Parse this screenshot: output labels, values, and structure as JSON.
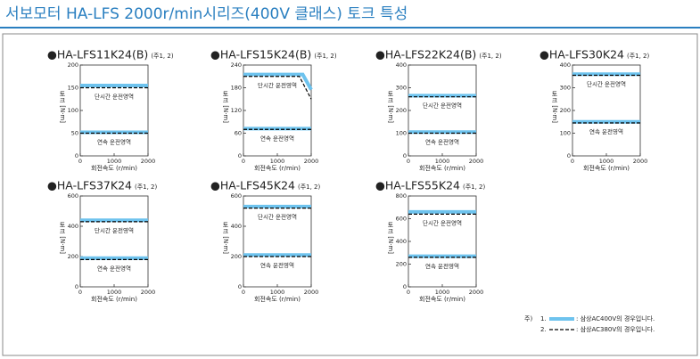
{
  "header": {
    "title": "서보모터 HA-LFS 2000r/min시리즈(400V 클래스) 토크 특성"
  },
  "chart_data": [
    {
      "type": "line",
      "title": "●HA-LFS11K24(B)",
      "note": "(주1, 2)",
      "ylabel": "토크 [N·m]",
      "xlabel": "회전속도 (r/min)",
      "xlim": [
        0,
        2000
      ],
      "xticks": [
        0,
        1000,
        2000
      ],
      "ylim": [
        0,
        200
      ],
      "yticks": [
        0,
        50,
        100,
        150,
        200
      ],
      "annotations": [
        "단시간 운전영역",
        "연속 운전영역"
      ],
      "series": [
        {
          "style": "band",
          "color": "#6ec3ee",
          "x": [
            0,
            2000
          ],
          "values": [
            155,
            155
          ]
        },
        {
          "style": "dashed",
          "color": "#000000",
          "x": [
            0,
            2000
          ],
          "values": [
            150,
            150
          ]
        },
        {
          "style": "band",
          "color": "#6ec3ee",
          "x": [
            0,
            2000
          ],
          "values": [
            52,
            52
          ]
        },
        {
          "style": "dashed",
          "color": "#000000",
          "x": [
            0,
            2000
          ],
          "values": [
            50,
            50
          ]
        }
      ]
    },
    {
      "type": "line",
      "title": "●HA-LFS15K24(B)",
      "note": "(주1, 2)",
      "ylabel": "토크 [N·m]",
      "xlabel": "회전속도 (r/min)",
      "xlim": [
        0,
        2000
      ],
      "xticks": [
        0,
        1000,
        2000
      ],
      "ylim": [
        0,
        240
      ],
      "yticks": [
        0,
        60,
        120,
        180,
        240
      ],
      "annotations": [
        "단시간 운전영역",
        "연속 운전영역"
      ],
      "series": [
        {
          "style": "band",
          "color": "#6ec3ee",
          "x": [
            0,
            1750,
            2000
          ],
          "values": [
            215,
            215,
            175
          ]
        },
        {
          "style": "dashed",
          "color": "#000000",
          "x": [
            0,
            1650,
            2000
          ],
          "values": [
            210,
            210,
            150
          ]
        },
        {
          "style": "band",
          "color": "#6ec3ee",
          "x": [
            0,
            2000
          ],
          "values": [
            72,
            72
          ]
        },
        {
          "style": "dashed",
          "color": "#000000",
          "x": [
            0,
            2000
          ],
          "values": [
            70,
            70
          ]
        }
      ]
    },
    {
      "type": "line",
      "title": "●HA-LFS22K24(B)",
      "note": "(주1, 2)",
      "ylabel": "토크 [N·m]",
      "xlabel": "회전속도 (r/min)",
      "xlim": [
        0,
        2000
      ],
      "xticks": [
        0,
        1000,
        2000
      ],
      "ylim": [
        0,
        400
      ],
      "yticks": [
        0,
        100,
        200,
        300,
        400
      ],
      "annotations": [
        "단시간 운전영역",
        "연속 운전영역"
      ],
      "series": [
        {
          "style": "band",
          "color": "#6ec3ee",
          "x": [
            0,
            2000
          ],
          "values": [
            265,
            265
          ]
        },
        {
          "style": "dashed",
          "color": "#000000",
          "x": [
            0,
            2000
          ],
          "values": [
            260,
            260
          ]
        },
        {
          "style": "band",
          "color": "#6ec3ee",
          "x": [
            0,
            2000
          ],
          "values": [
            105,
            105
          ]
        },
        {
          "style": "dashed",
          "color": "#000000",
          "x": [
            0,
            2000
          ],
          "values": [
            100,
            100
          ]
        }
      ]
    },
    {
      "type": "line",
      "title": "●HA-LFS30K24",
      "note": "(주1, 2)",
      "ylabel": "토크 [N·m]",
      "xlabel": "회전속도 (r/min)",
      "xlim": [
        0,
        2000
      ],
      "xticks": [
        0,
        1000,
        2000
      ],
      "ylim": [
        0,
        400
      ],
      "yticks": [
        0,
        100,
        200,
        300,
        400
      ],
      "annotations": [
        "단시간 운전영역",
        "연속 운전영역"
      ],
      "series": [
        {
          "style": "band",
          "color": "#6ec3ee",
          "x": [
            0,
            2000
          ],
          "values": [
            360,
            360
          ]
        },
        {
          "style": "dashed",
          "color": "#000000",
          "x": [
            0,
            2000
          ],
          "values": [
            355,
            355
          ]
        },
        {
          "style": "band",
          "color": "#6ec3ee",
          "x": [
            0,
            2000
          ],
          "values": [
            150,
            150
          ]
        },
        {
          "style": "dashed",
          "color": "#000000",
          "x": [
            0,
            2000
          ],
          "values": [
            145,
            145
          ]
        }
      ]
    },
    {
      "type": "line",
      "title": "●HA-LFS37K24",
      "note": "(주1, 2)",
      "ylabel": "토크 [N·m]",
      "xlabel": "회전속도 (r/min)",
      "xlim": [
        0,
        2000
      ],
      "xticks": [
        0,
        1000,
        2000
      ],
      "ylim": [
        0,
        600
      ],
      "yticks": [
        0,
        200,
        400,
        600
      ],
      "annotations": [
        "단시간 운전영역",
        "연속 운전영역"
      ],
      "series": [
        {
          "style": "band",
          "color": "#6ec3ee",
          "x": [
            0,
            2000
          ],
          "values": [
            440,
            440
          ]
        },
        {
          "style": "dashed",
          "color": "#000000",
          "x": [
            0,
            2000
          ],
          "values": [
            430,
            430
          ]
        },
        {
          "style": "band",
          "color": "#6ec3ee",
          "x": [
            0,
            2000
          ],
          "values": [
            190,
            190
          ]
        },
        {
          "style": "dashed",
          "color": "#000000",
          "x": [
            0,
            2000
          ],
          "values": [
            180,
            180
          ]
        }
      ]
    },
    {
      "type": "line",
      "title": "●HA-LFS45K24",
      "note": "(주1, 2)",
      "ylabel": "토크 [N·m]",
      "xlabel": "회전속도 (r/min)",
      "xlim": [
        0,
        2000
      ],
      "xticks": [
        0,
        1000,
        2000
      ],
      "ylim": [
        0,
        600
      ],
      "yticks": [
        0,
        200,
        400,
        600
      ],
      "annotations": [
        "단시간 운전영역",
        "연속 운전영역"
      ],
      "series": [
        {
          "style": "band",
          "color": "#6ec3ee",
          "x": [
            0,
            2000
          ],
          "values": [
            530,
            530
          ]
        },
        {
          "style": "dashed",
          "color": "#000000",
          "x": [
            0,
            2000
          ],
          "values": [
            520,
            520
          ]
        },
        {
          "style": "band",
          "color": "#6ec3ee",
          "x": [
            0,
            2000
          ],
          "values": [
            210,
            210
          ]
        },
        {
          "style": "dashed",
          "color": "#000000",
          "x": [
            0,
            2000
          ],
          "values": [
            200,
            200
          ]
        }
      ]
    },
    {
      "type": "line",
      "title": "●HA-LFS55K24",
      "note": "(주1, 2)",
      "ylabel": "토크 [N·m]",
      "xlabel": "회전속도 (r/min)",
      "xlim": [
        0,
        2000
      ],
      "xticks": [
        0,
        1000,
        2000
      ],
      "ylim": [
        0,
        800
      ],
      "yticks": [
        0,
        200,
        400,
        600,
        800
      ],
      "annotations": [
        "단시간 운전영역",
        "연속 운전영역"
      ],
      "series": [
        {
          "style": "band",
          "color": "#6ec3ee",
          "x": [
            0,
            2000
          ],
          "values": [
            660,
            660
          ]
        },
        {
          "style": "dashed",
          "color": "#000000",
          "x": [
            0,
            2000
          ],
          "values": [
            640,
            640
          ]
        },
        {
          "style": "band",
          "color": "#6ec3ee",
          "x": [
            0,
            2000
          ],
          "values": [
            270,
            270
          ]
        },
        {
          "style": "dashed",
          "color": "#000000",
          "x": [
            0,
            2000
          ],
          "values": [
            260,
            260
          ]
        }
      ]
    }
  ],
  "legend": {
    "label": "주)",
    "items": [
      {
        "num": "1.",
        "style": "band",
        "color": "#6ec3ee",
        "text": ": 삼상AC400V의 경우입니다."
      },
      {
        "num": "2.",
        "style": "dashed",
        "color": "#000000",
        "text": ": 삼상AC380V의 경우입니다."
      }
    ]
  }
}
